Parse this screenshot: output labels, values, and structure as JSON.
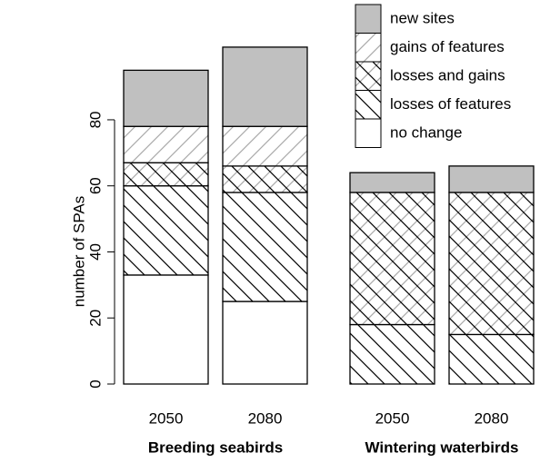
{
  "chart_data": {
    "type": "stacked_bar",
    "categories": [
      "2050",
      "2080",
      "2050",
      "2080"
    ],
    "groups": [
      {
        "label": "Breeding seabirds",
        "size": 2
      },
      {
        "label": "Wintering waterbirds",
        "size": 2
      }
    ],
    "y_label": "number of SPAs",
    "ylim": [
      0,
      105
    ],
    "yticks": [
      0,
      20,
      40,
      60,
      80
    ],
    "series": [
      {
        "name": "no change",
        "color": "#ffffff",
        "hatch": "none",
        "values": [
          33,
          25,
          0,
          0
        ]
      },
      {
        "name": "losses of features",
        "color": "#ffffff",
        "hatch": "back",
        "values": [
          27,
          33,
          18,
          15
        ]
      },
      {
        "name": "losses and gains",
        "color": "#ffffff",
        "hatch": "cross",
        "values": [
          7,
          8,
          40,
          43
        ]
      },
      {
        "name": "gains of features",
        "color": "#ffffff",
        "hatch": "fore",
        "values": [
          11,
          12,
          0,
          0
        ]
      },
      {
        "name": "new sites",
        "color": "#c0c0c0",
        "hatch": "none",
        "values": [
          17,
          24,
          6,
          8
        ]
      }
    ]
  }
}
